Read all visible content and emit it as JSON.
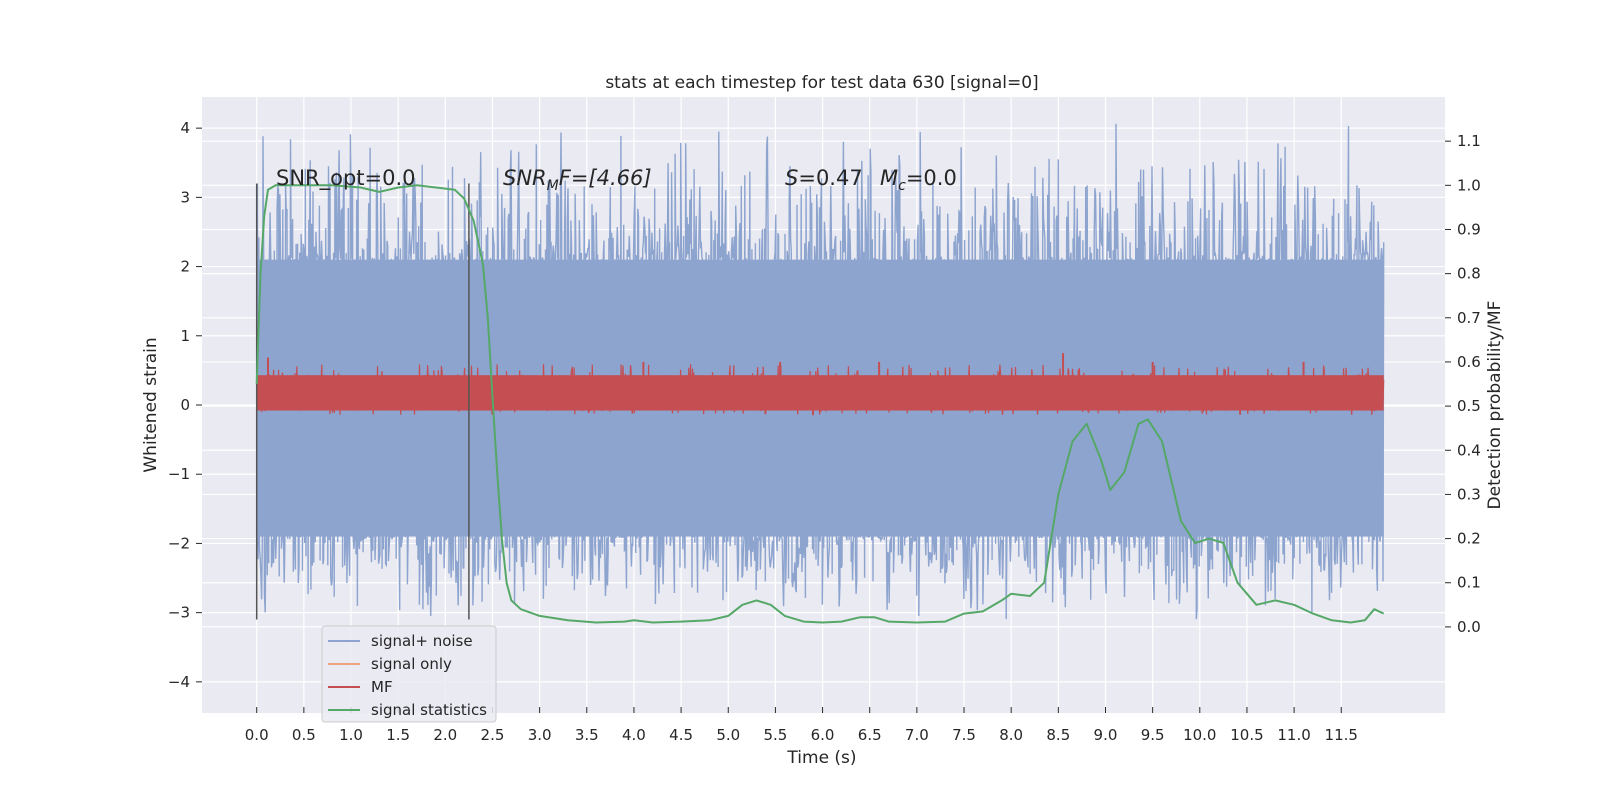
{
  "chart_data": {
    "type": "line",
    "title": "stats at each timestep for test data 630 [signal=0]",
    "xlabel": "Time (s)",
    "ylabel": "Whitened strain",
    "y2label": "Detection probability/MF",
    "xlim": [
      -0.58,
      12.6
    ],
    "ylim": [
      -4.45,
      4.45
    ],
    "y2lim": [
      -0.195,
      1.2
    ],
    "x_ticks": [
      0.0,
      0.5,
      1.0,
      1.5,
      2.0,
      2.5,
      3.0,
      3.5,
      4.0,
      4.5,
      5.0,
      5.5,
      6.0,
      6.5,
      7.0,
      7.5,
      8.0,
      8.5,
      9.0,
      9.5,
      10.0,
      10.5,
      11.0,
      11.5
    ],
    "x_tick_labels": [
      "0.0",
      "0.5",
      "1.0",
      "1.5",
      "2.0",
      "2.5",
      "3.0",
      "3.5",
      "4.0",
      "4.5",
      "5.0",
      "5.5",
      "6.0",
      "6.5",
      "7.0",
      "7.5",
      "8.0",
      "8.5",
      "9.0",
      "9.5",
      "10.0",
      "10.5",
      "11.0",
      "11.5"
    ],
    "y_ticks": [
      4,
      3,
      2,
      1,
      0,
      -1,
      -2,
      -3,
      -4
    ],
    "y_tick_labels": [
      "4",
      "3",
      "2",
      "1",
      "0",
      "−1",
      "−2",
      "−3",
      "−4"
    ],
    "y2_ticks": [
      1.1,
      1.0,
      0.9,
      0.8,
      0.7,
      0.6,
      0.5,
      0.4,
      0.3,
      0.2,
      0.1,
      0.0
    ],
    "y2_tick_labels": [
      "1.1",
      "1.0",
      "0.9",
      "0.8",
      "0.7",
      "0.6",
      "0.5",
      "0.4",
      "0.3",
      "0.2",
      "0.1",
      "0.0"
    ],
    "grid": true,
    "legend_position": "lower-left",
    "annotations": {
      "snr_opt": "SNR_opt=0.0",
      "snr_mf_main": "SNR",
      "snr_mf_sub": "M",
      "snr_mf_rest": "F=[4.66]",
      "s_main": "S",
      "s_rest": "=0.47",
      "mc_main": "M",
      "mc_sub": "c",
      "mc_rest": "=0.0"
    },
    "vertical_lines": [
      0.0,
      2.25
    ],
    "series": [
      {
        "name": "signal+ noise",
        "color": "#8da4cf",
        "axis": "left",
        "x_range": [
          0.0,
          11.95
        ],
        "core_band": [
          -1.9,
          2.1
        ],
        "envelope_band": [
          -3.2,
          4.1
        ]
      },
      {
        "name": "signal only",
        "color": "#f0a47e",
        "axis": "left",
        "values": []
      },
      {
        "name": "MF",
        "color": "#c44e52",
        "axis": "right",
        "x_range": [
          0.0,
          11.95
        ],
        "band": [
          0.49,
          0.57
        ],
        "peaks": [
          {
            "x": 0.12,
            "y": 0.61
          },
          {
            "x": 4.1,
            "y": 0.6
          },
          {
            "x": 5.55,
            "y": 0.6
          },
          {
            "x": 6.6,
            "y": 0.6
          },
          {
            "x": 8.55,
            "y": 0.62
          },
          {
            "x": 9.5,
            "y": 0.6
          },
          {
            "x": 11.1,
            "y": 0.6
          }
        ]
      },
      {
        "name": "signal statistics",
        "color": "#55a868",
        "axis": "right",
        "x": [
          0.0,
          0.04,
          0.08,
          0.12,
          0.2,
          0.3,
          0.5,
          0.8,
          1.1,
          1.3,
          1.5,
          1.7,
          1.9,
          2.1,
          2.2,
          2.3,
          2.4,
          2.45,
          2.5,
          2.55,
          2.6,
          2.65,
          2.7,
          2.8,
          3.0,
          3.3,
          3.6,
          3.9,
          4.0,
          4.2,
          4.5,
          4.8,
          5.0,
          5.15,
          5.3,
          5.45,
          5.6,
          5.8,
          6.0,
          6.2,
          6.4,
          6.55,
          6.7,
          7.0,
          7.3,
          7.5,
          7.7,
          7.9,
          8.0,
          8.2,
          8.35,
          8.5,
          8.65,
          8.8,
          8.95,
          9.05,
          9.2,
          9.35,
          9.45,
          9.6,
          9.8,
          9.95,
          10.1,
          10.25,
          10.4,
          10.6,
          10.8,
          11.0,
          11.2,
          11.4,
          11.6,
          11.75,
          11.85,
          11.95
        ],
        "values": [
          0.55,
          0.8,
          0.93,
          0.99,
          1.0,
          1.0,
          1.0,
          1.0,
          0.995,
          0.985,
          0.995,
          1.0,
          0.995,
          0.99,
          0.97,
          0.92,
          0.82,
          0.7,
          0.52,
          0.35,
          0.2,
          0.1,
          0.06,
          0.04,
          0.025,
          0.015,
          0.01,
          0.012,
          0.015,
          0.01,
          0.012,
          0.015,
          0.025,
          0.05,
          0.06,
          0.05,
          0.025,
          0.012,
          0.01,
          0.012,
          0.022,
          0.022,
          0.012,
          0.01,
          0.012,
          0.03,
          0.035,
          0.06,
          0.075,
          0.07,
          0.1,
          0.3,
          0.42,
          0.46,
          0.38,
          0.31,
          0.35,
          0.46,
          0.47,
          0.42,
          0.24,
          0.19,
          0.2,
          0.19,
          0.1,
          0.05,
          0.06,
          0.05,
          0.03,
          0.015,
          0.01,
          0.015,
          0.04,
          0.03
        ]
      }
    ]
  }
}
